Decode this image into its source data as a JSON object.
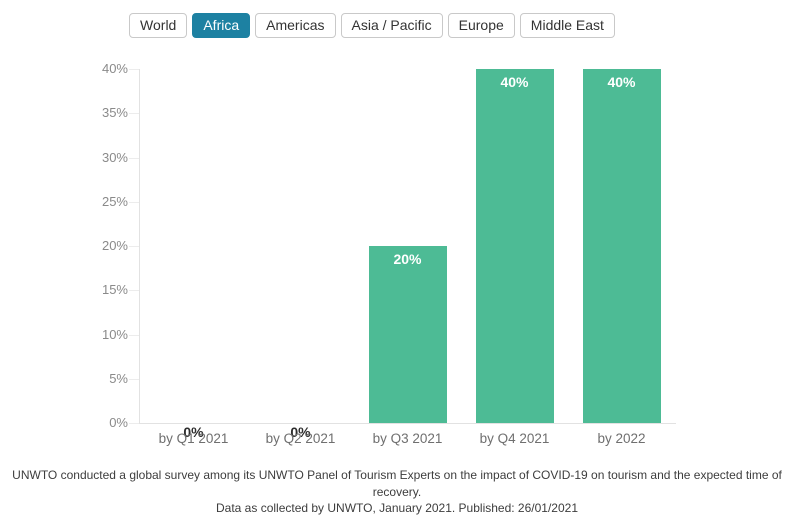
{
  "tabs": {
    "items": [
      {
        "label": "World",
        "active": false
      },
      {
        "label": "Africa",
        "active": true
      },
      {
        "label": "Americas",
        "active": false
      },
      {
        "label": "Asia / Pacific",
        "active": false
      },
      {
        "label": "Europe",
        "active": false
      },
      {
        "label": "Middle East",
        "active": false
      }
    ]
  },
  "chart_data": {
    "type": "bar",
    "categories": [
      "by Q1 2021",
      "by Q2 2021",
      "by Q3 2021",
      "by Q4 2021",
      "by 2022"
    ],
    "values": [
      0,
      0,
      20,
      40,
      40
    ],
    "value_labels": [
      "0%",
      "0%",
      "20%",
      "40%",
      "40%"
    ],
    "ytick_values": [
      0,
      5,
      10,
      15,
      20,
      25,
      30,
      35,
      40
    ],
    "yticks": [
      "0%",
      "5%",
      "10%",
      "15%",
      "20%",
      "25%",
      "30%",
      "35%",
      "40%"
    ],
    "ylim": [
      0,
      40
    ],
    "grid": "tick-marks-only",
    "legend": "none",
    "bar_color": "#4dbb95",
    "value_label_color_inside": "#ffffff",
    "value_label_color_outside": "#2d2d2d"
  },
  "footer": {
    "line1": "UNWTO conducted a global survey among its UNWTO Panel of Tourism Experts on the impact of COVID-19 on tourism and the expected time of recovery.",
    "line2": "Data as collected by UNWTO, January 2021. Published: 26/01/2021"
  },
  "colors": {
    "active_tab_bg": "#1d81a2",
    "active_tab_text": "#ffffff",
    "tab_border": "#c9c9c9",
    "y_axis_text": "#8a8a8a",
    "x_axis_text": "#6f6f6f",
    "axis_line": "#e2e2e2",
    "footer_text": "#3d3d3d"
  }
}
